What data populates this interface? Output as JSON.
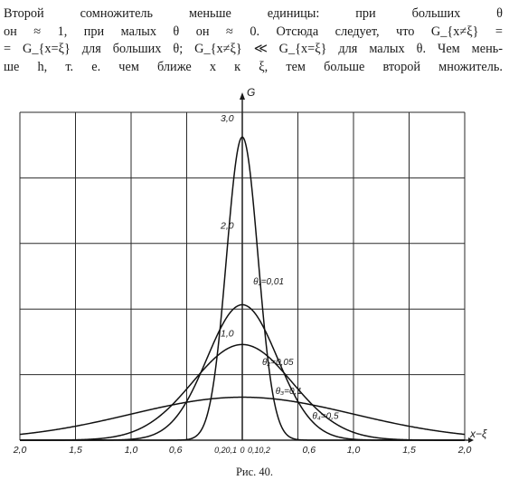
{
  "text": {
    "lines": [
      "Второй сомножитель меньше единицы: при больших θ",
      "он ≈ 1, при малых θ он ≈ 0. Отсюда следует, что G_{x≠ξ} =",
      "= G_{x=ξ} для больших θ; G_{x≠ξ} ≪ G_{x=ξ} для малых θ. Чем мень-",
      "ше h, т. е. чем ближе x к ξ, тем больше второй множитель."
    ]
  },
  "caption": "Рис. 40.",
  "chart_data": {
    "type": "line",
    "xlabel": "x−ξ",
    "ylabel": "G",
    "xlim": [
      -2.0,
      2.0
    ],
    "ylim": [
      0,
      3.0
    ],
    "grid": true,
    "x_ticks": [
      "2,0",
      "1,5",
      "1,0",
      "0,6",
      "0,2",
      "0,1",
      "0",
      "0,1",
      "0,2",
      "0,6",
      "1,0",
      "1,5",
      "2,0"
    ],
    "x_tick_values": [
      -2.0,
      -1.5,
      -1.0,
      -0.6,
      -0.2,
      -0.1,
      0,
      0.1,
      0.2,
      0.6,
      1.0,
      1.5,
      2.0
    ],
    "y_ticks": [
      "1,0",
      "2,0",
      "3,0"
    ],
    "y_tick_values": [
      1.0,
      2.0,
      3.0
    ],
    "series": [
      {
        "name": "θ₁=0,01",
        "theta": 0.01,
        "peak": 2.82
      },
      {
        "name": "θ₂=0,05",
        "theta": 0.05,
        "peak": 1.26
      },
      {
        "name": "θ₃=0,1",
        "theta": 0.1,
        "peak": 0.89
      },
      {
        "name": "θ₄=0,5",
        "theta": 0.5,
        "peak": 0.4
      }
    ]
  }
}
